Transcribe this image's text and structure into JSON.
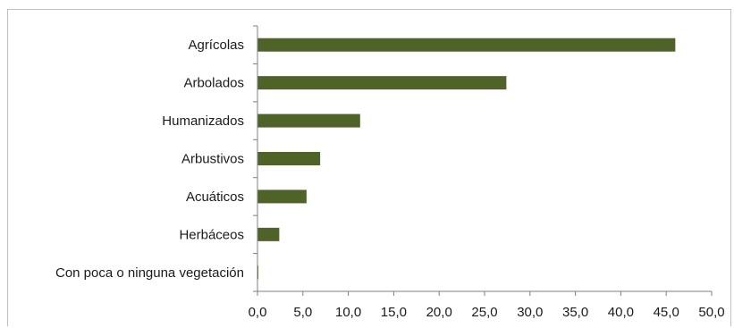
{
  "chart_data": {
    "type": "bar",
    "orientation": "horizontal",
    "categories": [
      "Agrícolas",
      "Arbolados",
      "Humanizados",
      "Arbustivos",
      "Acuáticos",
      "Herbáceos",
      "Con poca o ninguna vegetación"
    ],
    "values": [
      46.0,
      27.4,
      11.3,
      6.9,
      5.4,
      2.4,
      0.1
    ],
    "xlim": [
      0,
      50
    ],
    "xticks": [
      "0,0",
      "5,0",
      "10,0",
      "15,0",
      "20,0",
      "25,0",
      "30,0",
      "35,0",
      "40,0",
      "45,0",
      "50,0"
    ],
    "grid": false,
    "legend": "none",
    "colors": {
      "bar": "#4f6228",
      "axis": "#7f7f7f",
      "frame": "#bfbfbf"
    }
  }
}
